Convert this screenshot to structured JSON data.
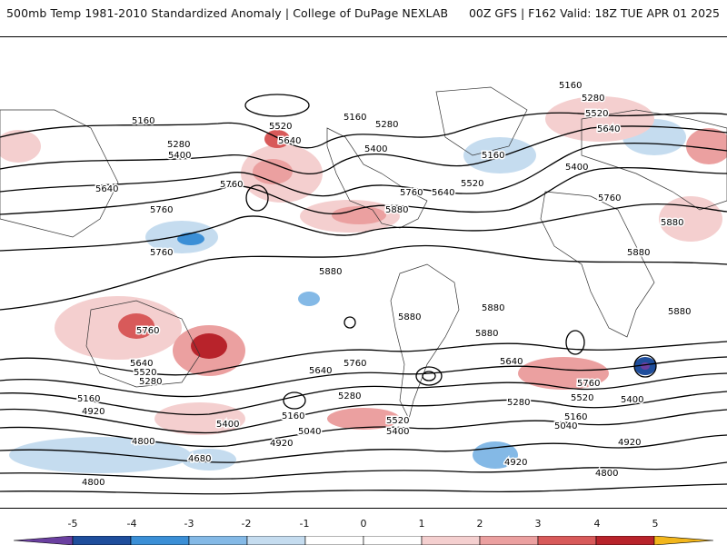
{
  "header": {
    "title": "500mb Temp 1981-2010 Standardized Anomaly | College of DuPage NEXLAB",
    "run_info": "00Z GFS | F162 Valid: 18Z TUE APR 01 2025"
  },
  "map": {
    "contour_labels": [
      "5160",
      "5280",
      "5400",
      "5520",
      "5640",
      "5760",
      "5880",
      "5040",
      "4920",
      "4800",
      "4680"
    ],
    "anomaly_colors": {
      "neg5": "#6a3fa0",
      "neg4": "#1f4e9c",
      "neg3": "#3b8fd6",
      "neg2": "#84b9e6",
      "neg1": "#c5dcef",
      "zero": "#ffffff",
      "pos1": "#f4cfcf",
      "pos2": "#eba0a0",
      "pos3": "#d85a5a",
      "pos4": "#b8232b",
      "pos5": "#7d0b14",
      "pos6": "#f2b61c"
    }
  },
  "legend": {
    "ticks": [
      "-5",
      "-4",
      "-3",
      "-2",
      "-1",
      "0",
      "1",
      "2",
      "3",
      "4",
      "5"
    ]
  }
}
